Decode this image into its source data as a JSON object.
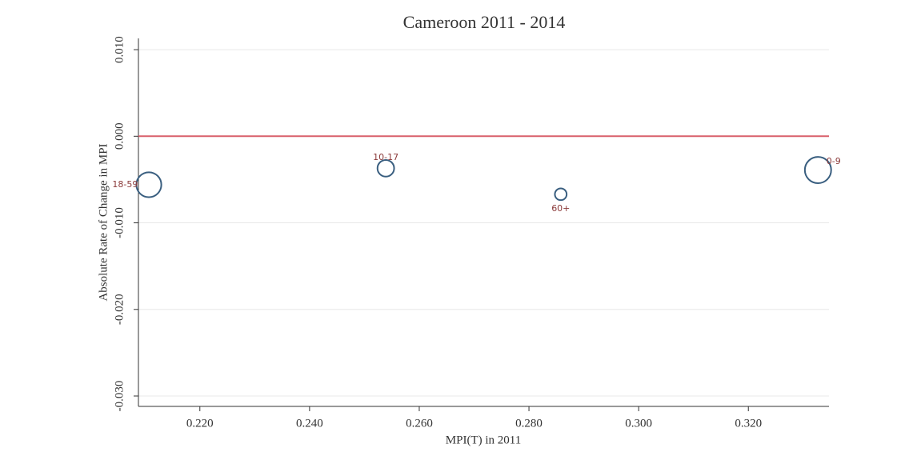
{
  "chart_data": {
    "type": "scatter",
    "title": "Cameroon 2011 - 2014",
    "x_label": "MPI(T) in 2011",
    "y_label": "Absolute Rate of Change in MPI",
    "point_labels": [
      "18-59",
      "10-17",
      "60+",
      "0-9"
    ],
    "x": [
      0.2107,
      0.2539,
      0.2858,
      0.3327
    ],
    "values": [
      -0.0056,
      -0.0037,
      -0.0067,
      -0.0039
    ],
    "sizes": [
      36,
      16,
      8,
      40
    ],
    "color": "#3a5f80",
    "label_color": "#8b3a3a",
    "xlim": [
      0.2088,
      0.3347
    ],
    "ylim": [
      -0.0312,
      0.0113
    ],
    "xticks": [
      {
        "value": 0.22,
        "label": "0.220"
      },
      {
        "value": 0.24,
        "label": "0.240"
      },
      {
        "value": 0.26,
        "label": "0.260"
      },
      {
        "value": 0.28,
        "label": "0.280"
      },
      {
        "value": 0.3,
        "label": "0.300"
      },
      {
        "value": 0.32,
        "label": "0.320"
      }
    ],
    "yticks": [
      {
        "value": 0.01,
        "label": "0.010"
      },
      {
        "value": 0,
        "label": "0.000"
      },
      {
        "value": -0.01,
        "label": "-0.010"
      },
      {
        "value": -0.02,
        "label": "-0.020"
      },
      {
        "value": -0.03,
        "label": "-0.030"
      }
    ],
    "reference_line": {
      "y": 0,
      "color": "#d9606c"
    },
    "grid": true
  }
}
